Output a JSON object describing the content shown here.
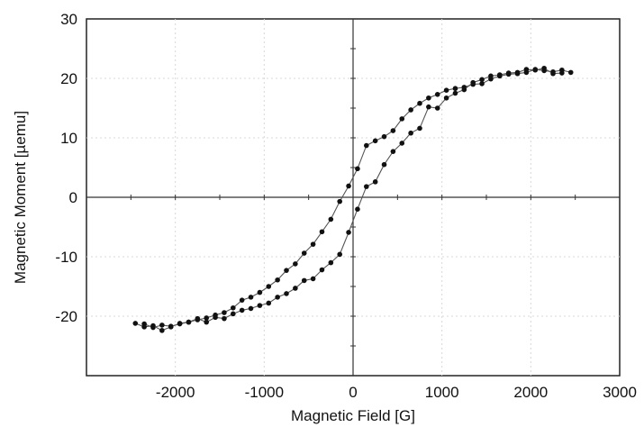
{
  "chart_data": {
    "type": "scatter",
    "title": "",
    "xlabel": "Magnetic Field [G]",
    "ylabel": "Magnetic Moment [µemu]",
    "xlim": [
      -3000,
      3000
    ],
    "ylim": [
      -30,
      30
    ],
    "xticks": [
      -2000,
      -1000,
      0,
      1000,
      2000,
      3000
    ],
    "yticks": [
      -20,
      -10,
      0,
      10,
      20,
      30
    ],
    "x_tick_labels": [
      "-2000",
      "-1000",
      "0",
      "1000",
      "2000",
      "3000"
    ],
    "y_tick_labels": [
      "-20",
      "-10",
      "0",
      "10",
      "20",
      "30"
    ],
    "grid": true,
    "legend": "none",
    "line_color": "#555555",
    "marker_color": "#111111",
    "series": [
      {
        "x": [
          2450,
          2350,
          2250,
          2150,
          2050,
          1950,
          1850,
          1750,
          1650,
          1550,
          1450,
          1350,
          1250,
          1150,
          1050,
          950,
          850,
          750,
          650,
          550,
          450,
          350,
          250,
          150,
          50,
          -50,
          -150,
          -250,
          -350,
          -450,
          -550,
          -650,
          -750,
          -850,
          -950,
          -1050,
          -1150,
          -1250,
          -1350,
          -1450,
          -1550,
          -1650,
          -1750,
          -1850,
          -1950,
          -2050,
          -2150,
          -2250,
          -2350
        ],
        "y": [
          21.0,
          21.4,
          21.1,
          21.3,
          21.5,
          21.0,
          20.8,
          20.7,
          20.4,
          19.9,
          19.1,
          19.0,
          18.5,
          18.3,
          18.0,
          17.3,
          16.7,
          15.8,
          14.7,
          13.2,
          11.2,
          10.2,
          9.5,
          8.7,
          4.8,
          1.9,
          -0.7,
          -3.7,
          -5.8,
          -7.9,
          -9.4,
          -11.2,
          -12.3,
          -13.9,
          -15.0,
          -16.0,
          -16.8,
          -17.3,
          -18.6,
          -19.4,
          -19.8,
          -20.3,
          -20.6,
          -21.0,
          -21.3,
          -21.7,
          -21.5,
          -21.9,
          -21.3
        ]
      },
      {
        "x": [
          -2450,
          -2350,
          -2250,
          -2150,
          -2050,
          -1950,
          -1850,
          -1750,
          -1650,
          -1550,
          -1450,
          -1350,
          -1250,
          -1150,
          -1050,
          -950,
          -850,
          -750,
          -650,
          -550,
          -450,
          -350,
          -250,
          -150,
          -50,
          50,
          150,
          250,
          350,
          450,
          550,
          650,
          750,
          850,
          950,
          1050,
          1150,
          1250,
          1350,
          1450,
          1550,
          1650,
          1750,
          1850,
          1950,
          2050,
          2150,
          2250,
          2350
        ],
        "y": [
          -21.2,
          -21.8,
          -21.6,
          -22.4,
          -21.8,
          -21.2,
          -21.0,
          -20.4,
          -21.0,
          -20.2,
          -20.4,
          -19.6,
          -19.0,
          -18.7,
          -18.2,
          -17.8,
          -16.8,
          -16.2,
          -15.3,
          -14.0,
          -13.7,
          -12.2,
          -11.0,
          -9.6,
          -5.9,
          -2.0,
          1.8,
          2.6,
          5.5,
          7.7,
          9.1,
          10.8,
          11.6,
          15.2,
          15.0,
          16.7,
          17.5,
          18.1,
          19.3,
          19.8,
          20.4,
          20.6,
          20.9,
          21.0,
          21.5,
          21.4,
          21.7,
          20.8,
          20.9
        ]
      }
    ]
  }
}
